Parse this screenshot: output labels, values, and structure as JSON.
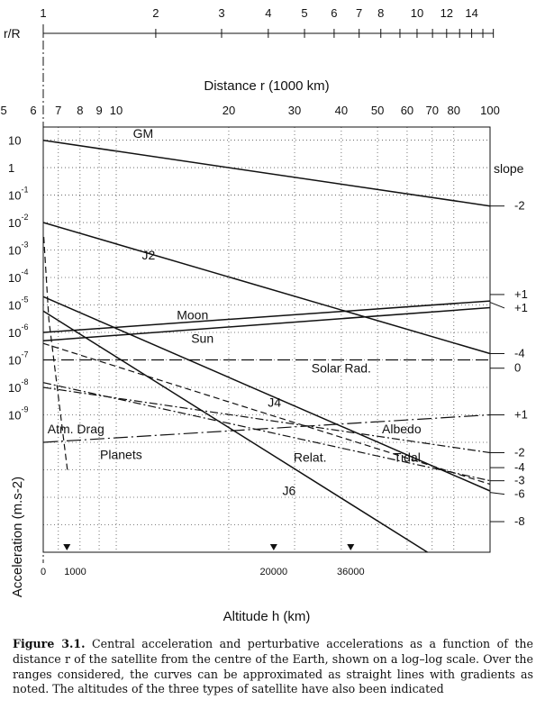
{
  "chart_data": {
    "type": "line",
    "title": "",
    "ylabel": "Acceleration (m.s-2)",
    "xlabel": "Altitude h (km)",
    "top_axis_label": "r/R",
    "upper_axis_label": "Distance r (1000 km)",
    "slope_header": "slope",
    "x_scale": "log",
    "y_scale": "log",
    "grid": true,
    "xlim": [
      6378,
      100000
    ],
    "ylim": [
      1e-14,
      30
    ],
    "rR_ticks": [
      1,
      2,
      3,
      4,
      5,
      6,
      7,
      8,
      9,
      10,
      11,
      12,
      13,
      14,
      15,
      16
    ],
    "rR_tick_labels": [
      {
        "value": 1,
        "label": "1"
      },
      {
        "value": 2,
        "label": "2"
      },
      {
        "value": 3,
        "label": "3"
      },
      {
        "value": 4,
        "label": "4"
      },
      {
        "value": 5,
        "label": "5"
      },
      {
        "value": 6,
        "label": "6"
      },
      {
        "value": 7,
        "label": "7"
      },
      {
        "value": 8,
        "label": "8"
      },
      {
        "value": 10,
        "label": "10"
      },
      {
        "value": 12,
        "label": "12"
      },
      {
        "value": 14,
        "label": "14"
      }
    ],
    "distance_ticks": [
      5,
      6,
      7,
      8,
      9,
      10,
      20,
      30,
      40,
      50,
      60,
      70,
      80,
      100
    ],
    "distance_tick_labels": [
      "5",
      "6",
      "7",
      "8",
      "9",
      "10",
      "20",
      "30",
      "40",
      "50",
      "60",
      "70",
      "80",
      "100"
    ],
    "y_ticks": [
      {
        "value": 10,
        "label": "10",
        "sup": ""
      },
      {
        "value": 1,
        "label": "1",
        "sup": ""
      },
      {
        "value": 0.1,
        "label": "10",
        "sup": "-1"
      },
      {
        "value": 0.01,
        "label": "10",
        "sup": "-2"
      },
      {
        "value": 0.001,
        "label": "10",
        "sup": "-3"
      },
      {
        "value": 0.0001,
        "label": "10",
        "sup": "-4"
      },
      {
        "value": 1e-05,
        "label": "10",
        "sup": "-5"
      },
      {
        "value": 1e-06,
        "label": "10",
        "sup": "-6"
      },
      {
        "value": 1e-07,
        "label": "10",
        "sup": "-7"
      },
      {
        "value": 1e-08,
        "label": "10",
        "sup": "-8"
      },
      {
        "value": 1e-09,
        "label": "10",
        "sup": "-9"
      }
    ],
    "y_grid_extra": [
      1e-10,
      1e-11,
      1e-12,
      1e-13
    ],
    "altitude_ticks": [
      {
        "value": 0,
        "label": "0"
      },
      {
        "value": 1000,
        "label": "1000"
      },
      {
        "value": 20000,
        "label": "20000"
      },
      {
        "value": 36000,
        "label": "36000"
      }
    ],
    "satellite_markers_altitude_km": [
      1000,
      20000,
      36000
    ],
    "series": [
      {
        "name": "GM",
        "dash": "solid",
        "points": [
          [
            6378,
            9.8
          ],
          [
            100000,
            0.04
          ]
        ],
        "slope": "-2"
      },
      {
        "name": "J2",
        "dash": "solid",
        "points": [
          [
            6378,
            0.01
          ],
          [
            100000,
            1.7e-07
          ]
        ],
        "slope": "-4"
      },
      {
        "name": "Moon",
        "dash": "solid",
        "points": [
          [
            6378,
            1e-06
          ],
          [
            100000,
            1.4e-05
          ]
        ],
        "slope": "+1"
      },
      {
        "name": "Sun",
        "dash": "solid",
        "points": [
          [
            6378,
            5e-07
          ],
          [
            100000,
            8e-06
          ]
        ],
        "slope": "+1"
      },
      {
        "name": "Solar Rad.",
        "dash": "long-dash",
        "points": [
          [
            6378,
            1e-07
          ],
          [
            100000,
            1e-07
          ]
        ],
        "slope": "0"
      },
      {
        "name": "Albedo",
        "dash": "dash-dot",
        "points": [
          [
            6378,
            1.5e-08
          ],
          [
            100000,
            4e-12
          ]
        ],
        "slope": "-3"
      },
      {
        "name": "Tidal",
        "dash": "dashed",
        "points": [
          [
            6378,
            4e-07
          ],
          [
            100000,
            3e-12
          ]
        ],
        "slope": "-4"
      },
      {
        "name": "Relat.",
        "dash": "dash-dot",
        "points": [
          [
            6378,
            1e-08
          ],
          [
            100000,
            4.2e-11
          ]
        ],
        "slope": "-2"
      },
      {
        "name": "J4",
        "dash": "solid",
        "points": [
          [
            6378,
            2e-05
          ],
          [
            100000,
            1.7e-12
          ]
        ],
        "slope": "-6"
      },
      {
        "name": "J6",
        "dash": "solid",
        "points": [
          [
            6378,
            6e-06
          ],
          [
            68000,
            1e-14
          ]
        ],
        "slope": "-8"
      },
      {
        "name": "Planets",
        "dash": "long-dash-dot",
        "points": [
          [
            6378,
            1e-10
          ],
          [
            100000,
            1e-09
          ]
        ],
        "slope": "+1"
      },
      {
        "name": "Atm. Drag",
        "dash": "dashed",
        "points": [
          [
            6400,
            0.003
          ],
          [
            6600,
            3e-06
          ],
          [
            7400,
            1e-11
          ]
        ],
        "slope": ""
      }
    ],
    "series_labels": [
      {
        "name": "GM",
        "x": 11800,
        "y": 12
      },
      {
        "name": "J2",
        "x": 12200,
        "y": 0.00045
      },
      {
        "name": "Moon",
        "x": 16000,
        "y": 3e-06
      },
      {
        "name": "Sun",
        "x": 17000,
        "y": 4.2e-07
      },
      {
        "name": "Solar Rad.",
        "x": 40000,
        "y": 3.5e-08
      },
      {
        "name": "J4",
        "x": 26500,
        "y": 2e-09
      },
      {
        "name": "Atm. Drag",
        "x": 7800,
        "y": 2.1e-10
      },
      {
        "name": "Planets",
        "x": 10300,
        "y": 2.5e-11
      },
      {
        "name": "Relat.",
        "x": 33000,
        "y": 2e-11
      },
      {
        "name": "Albedo",
        "x": 58000,
        "y": 2.1e-10
      },
      {
        "name": "Tidal",
        "x": 60000,
        "y": 2e-11
      },
      {
        "name": "J6",
        "x": 29000,
        "y": 1.2e-12
      }
    ],
    "slope_labels": [
      {
        "value": "-2",
        "y": 0.04
      },
      {
        "value": "+1",
        "y": 2.4e-05
      },
      {
        "value": "+1",
        "y": 1.25e-05
      },
      {
        "value": "-4",
        "y": 1.7e-07
      },
      {
        "value": "0",
        "y": 5e-08
      },
      {
        "value": "+1",
        "y": 1e-09
      },
      {
        "value": "-2",
        "y": 4.2e-11
      },
      {
        "value": "-4",
        "y": 1.2e-11
      },
      {
        "value": "-3",
        "y": 4e-12
      },
      {
        "value": "-6",
        "y": 1.5e-12
      },
      {
        "value": "-8",
        "y": 1.3e-13
      }
    ]
  },
  "caption": {
    "label": "Figure 3.1.",
    "text": "Central acceleration and perturbative accelerations as a function of the distance r of the satellite from the centre of the Earth, shown on a log–log scale. Over the ranges considered, the curves can be approximated as straight lines with gradients as noted. The altitudes of the three types of satellite have also been indicated"
  }
}
